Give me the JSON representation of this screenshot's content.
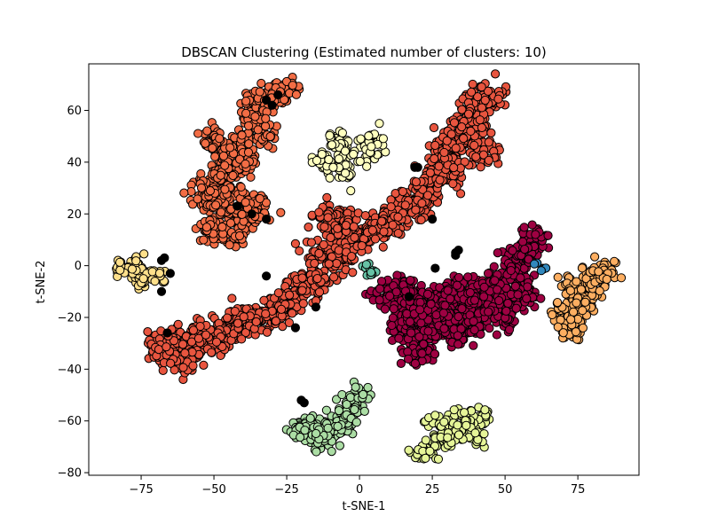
{
  "chart_data": {
    "type": "scatter",
    "title": "DBSCAN Clustering (Estimated number of clusters: 10)",
    "xlabel": "t-SNE-1",
    "ylabel": "t-SNE-2",
    "xlim": [
      -93,
      96
    ],
    "ylim": [
      -81,
      78
    ],
    "xticks": [
      -75,
      -50,
      -25,
      0,
      25,
      50,
      75
    ],
    "yticks": [
      -80,
      -60,
      -40,
      -20,
      0,
      20,
      40,
      60
    ],
    "grid": false,
    "legend": "none",
    "marker_edge_color": "#000000",
    "series": [
      {
        "color": "#e8553f",
        "points": [
          [
            -65,
            -30
          ],
          [
            -55,
            -27
          ],
          [
            -45,
            -25
          ],
          [
            -35,
            -20
          ],
          [
            -25,
            -14
          ],
          [
            -15,
            -5
          ],
          [
            -8,
            3
          ],
          [
            0,
            10
          ],
          [
            10,
            17
          ],
          [
            20,
            25
          ],
          [
            28,
            35
          ],
          [
            35,
            50
          ],
          [
            40,
            60
          ],
          [
            -60,
            -36
          ],
          [
            -50,
            -30
          ],
          [
            -40,
            -22
          ],
          [
            -30,
            -17
          ],
          [
            -20,
            -10
          ],
          [
            -12,
            5
          ],
          [
            -5,
            15
          ],
          [
            5,
            14
          ],
          [
            15,
            22
          ],
          [
            25,
            32
          ],
          [
            32,
            45
          ],
          [
            38,
            55
          ],
          [
            43,
            65
          ],
          [
            -68,
            -33
          ],
          [
            -10,
            18
          ],
          [
            30,
            40
          ],
          [
            42,
            45
          ]
        ],
        "spread": [
          3.0,
          2.8
        ],
        "count": 1600
      },
      {
        "color": "#f26d45",
        "points": [
          [
            -50,
            48
          ],
          [
            -45,
            46
          ],
          [
            -47,
            38
          ],
          [
            -51,
            30
          ],
          [
            -48,
            22
          ],
          [
            -50,
            14
          ],
          [
            -43,
            12
          ],
          [
            -38,
            25
          ],
          [
            -40,
            40
          ],
          [
            -38,
            55
          ],
          [
            -35,
            62
          ],
          [
            -30,
            66
          ],
          [
            -26,
            68
          ],
          [
            -33,
            50
          ],
          [
            -53,
            25
          ],
          [
            -45,
            30
          ],
          [
            -41,
            18
          ],
          [
            -35,
            22
          ]
        ],
        "spread": [
          2.4,
          2.6
        ],
        "count": 700
      },
      {
        "color": "#9e0142",
        "points": [
          [
            10,
            -12
          ],
          [
            16,
            -10
          ],
          [
            22,
            -15
          ],
          [
            30,
            -18
          ],
          [
            38,
            -12
          ],
          [
            45,
            -15
          ],
          [
            50,
            -20
          ],
          [
            55,
            -10
          ],
          [
            52,
            0
          ],
          [
            57,
            5
          ],
          [
            60,
            10
          ],
          [
            15,
            -25
          ],
          [
            25,
            -25
          ],
          [
            35,
            -25
          ],
          [
            20,
            -33
          ],
          [
            28,
            -22
          ],
          [
            40,
            -22
          ],
          [
            45,
            -8
          ],
          [
            18,
            -20
          ],
          [
            32,
            -10
          ]
        ],
        "spread": [
          2.6,
          2.6
        ],
        "count": 1100
      },
      {
        "color": "#fee08b",
        "points": [
          [
            -80,
            -1
          ],
          [
            -76,
            0
          ],
          [
            -72,
            -3
          ],
          [
            -75,
            -6
          ],
          [
            -68,
            -5
          ]
        ],
        "spread": [
          2.0,
          1.6
        ],
        "count": 90
      },
      {
        "color": "#fdae61",
        "points": [
          [
            72,
            -8
          ],
          [
            75,
            -15
          ],
          [
            80,
            -5
          ],
          [
            85,
            -3
          ],
          [
            73,
            -25
          ],
          [
            70,
            -20
          ],
          [
            78,
            -10
          ]
        ],
        "spread": [
          2.0,
          3.0
        ],
        "count": 230
      },
      {
        "color": "#ffffbf",
        "points": [
          [
            -13,
            40
          ],
          [
            -7,
            38
          ],
          [
            -5,
            46
          ],
          [
            -8,
            50
          ],
          [
            -4,
            34
          ],
          [
            2,
            42
          ],
          [
            5,
            48
          ]
        ],
        "spread": [
          1.8,
          2.4
        ],
        "count": 120
      },
      {
        "color": "#abdda4",
        "points": [
          [
            -17,
            -62
          ],
          [
            -12,
            -65
          ],
          [
            -7,
            -60
          ],
          [
            -3,
            -55
          ],
          [
            -14,
            -68
          ],
          [
            -20,
            -64
          ],
          [
            0,
            -50
          ],
          [
            -5,
            -62
          ]
        ],
        "spread": [
          2.2,
          2.2
        ],
        "count": 260
      },
      {
        "color": "#e6f598",
        "points": [
          [
            27,
            -60
          ],
          [
            32,
            -65
          ],
          [
            38,
            -62
          ],
          [
            42,
            -58
          ],
          [
            35,
            -58
          ],
          [
            28,
            -68
          ],
          [
            40,
            -65
          ],
          [
            22,
            -72
          ]
        ],
        "spread": [
          2.2,
          2.0
        ],
        "count": 170
      },
      {
        "color": "#66c2a5",
        "points": [
          [
            2,
            0
          ],
          [
            4,
            -3
          ],
          [
            5,
            -2
          ]
        ],
        "spread": [
          0.9,
          0.9
        ],
        "count": 10
      },
      {
        "color": "#3288bd",
        "points": [
          [
            61,
            1
          ],
          [
            63,
            -1
          ]
        ],
        "spread": [
          0.7,
          0.7
        ],
        "count": 4
      },
      {
        "color": "#000000",
        "points": [
          [
            -32,
            64
          ],
          [
            -30,
            62
          ],
          [
            -28,
            66
          ],
          [
            -42,
            23
          ],
          [
            -37,
            20
          ],
          [
            -32,
            18
          ],
          [
            -32,
            -4
          ],
          [
            -68,
            2
          ],
          [
            -67,
            3
          ],
          [
            -65,
            -3
          ],
          [
            -68,
            -10
          ],
          [
            -66,
            -26
          ],
          [
            -22,
            -24
          ],
          [
            -15,
            -16
          ],
          [
            -20,
            -52
          ],
          [
            -19,
            -53
          ],
          [
            19,
            38
          ],
          [
            20,
            38
          ],
          [
            25,
            18
          ],
          [
            33,
            5
          ],
          [
            34,
            6
          ],
          [
            33,
            4
          ],
          [
            26,
            -1
          ],
          [
            17,
            -12
          ]
        ],
        "spread": [
          0.0,
          0.0
        ],
        "count": 0
      }
    ]
  }
}
